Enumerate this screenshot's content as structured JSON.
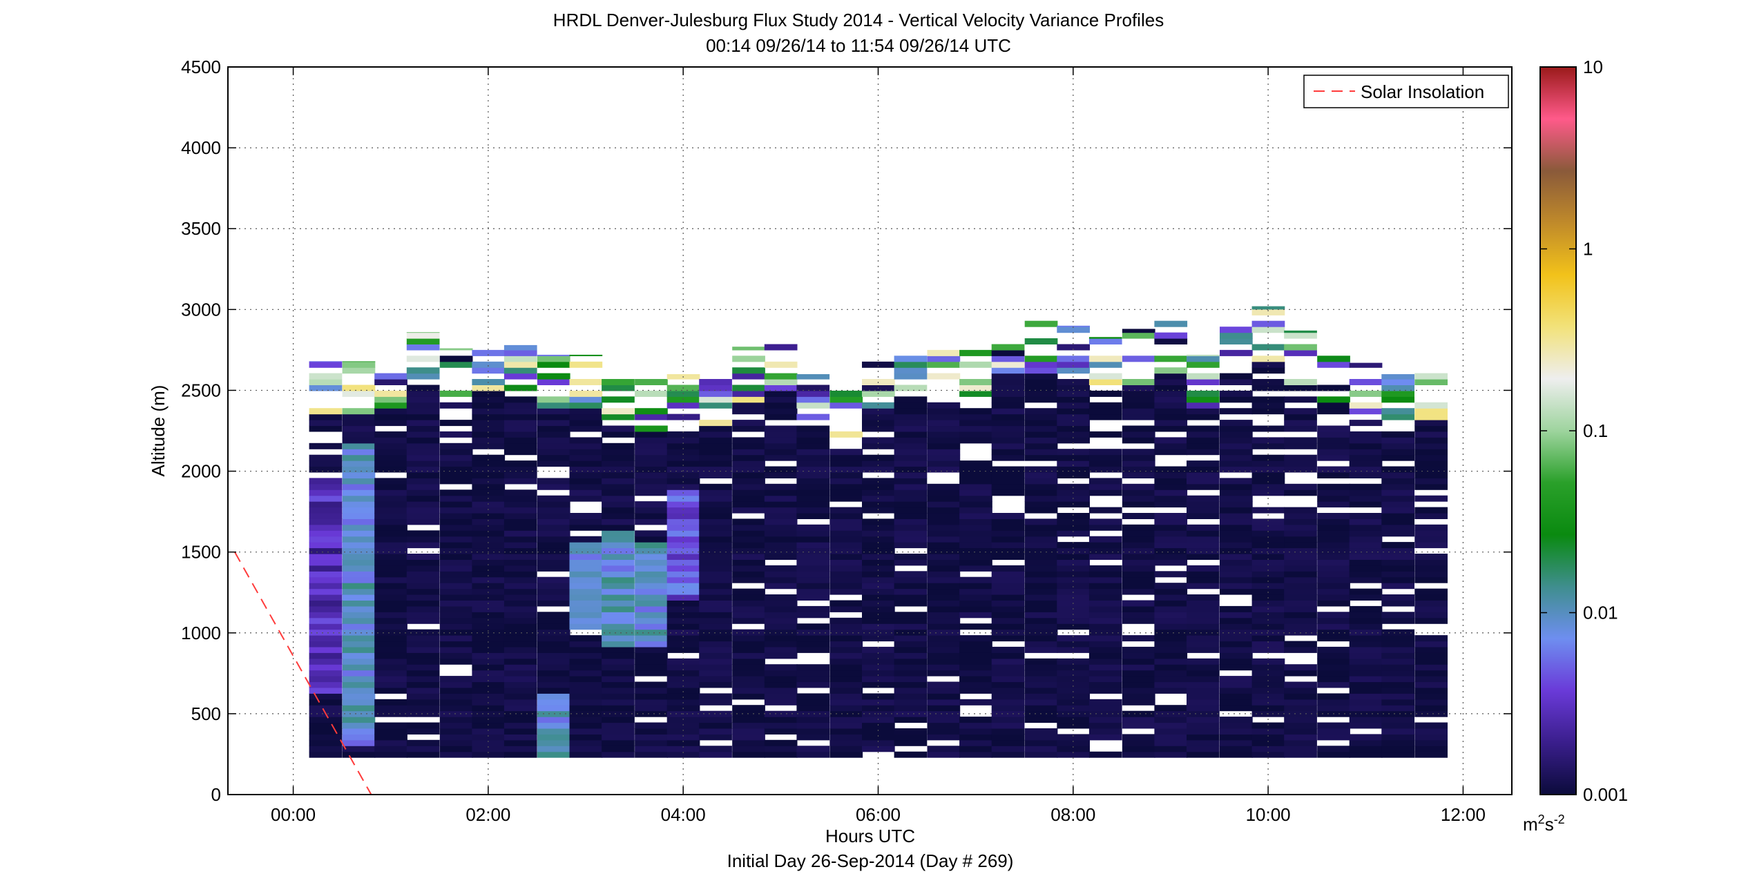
{
  "chart_data": {
    "type": "heatmap",
    "title": "HRDL Denver-Julesburg Flux Study 2014 - Vertical Velocity Variance Profiles",
    "subtitle": "00:14 09/26/14 to 11:54 09/26/14  UTC",
    "xlabel": "Hours UTC",
    "xlabel2": "Initial Day 26-Sep-2014 (Day # 269)",
    "ylabel": "Altitude (m)",
    "xlim_hours": [
      -0.67,
      12.5
    ],
    "ylim": [
      0,
      4500
    ],
    "x_ticks": [
      {
        "v": 0,
        "label": "00:00"
      },
      {
        "v": 2,
        "label": "02:00"
      },
      {
        "v": 4,
        "label": "04:00"
      },
      {
        "v": 6,
        "label": "06:00"
      },
      {
        "v": 8,
        "label": "08:00"
      },
      {
        "v": 10,
        "label": "10:00"
      },
      {
        "v": 12,
        "label": "12:00"
      }
    ],
    "y_ticks": [
      {
        "v": 0,
        "label": "0"
      },
      {
        "v": 500,
        "label": "500"
      },
      {
        "v": 1000,
        "label": "1000"
      },
      {
        "v": 1500,
        "label": "1500"
      },
      {
        "v": 2000,
        "label": "2000"
      },
      {
        "v": 2500,
        "label": "2500"
      },
      {
        "v": 3000,
        "label": "3000"
      },
      {
        "v": 3500,
        "label": "3500"
      },
      {
        "v": 4000,
        "label": "4000"
      },
      {
        "v": 4500,
        "label": "4500"
      }
    ],
    "grid": true,
    "legend": {
      "placement": "top-right",
      "entries": [
        {
          "name": "Solar Insolation",
          "color": "#ff3b3b",
          "style": "dashed"
        }
      ]
    },
    "solar_insolation_line": {
      "x": [
        -0.6,
        0.8
      ],
      "y": [
        1500,
        0
      ]
    },
    "colorbar": {
      "scale": "log",
      "range": [
        0.001,
        10
      ],
      "ticks": [
        {
          "v": 0.001,
          "label": "0.001"
        },
        {
          "v": 0.01,
          "label": "0.01"
        },
        {
          "v": 0.1,
          "label": "0.1"
        },
        {
          "v": 1,
          "label": "1"
        },
        {
          "v": 10,
          "label": "10"
        }
      ],
      "units_base": "m",
      "units_exp1": "2",
      "units_mid": "s",
      "units_exp2": "-2",
      "color_stops": [
        "#0b0b3b",
        "#3a1e8c",
        "#6a3ad8",
        "#6e8ef0",
        "#3f8e8e",
        "#0a8a10",
        "#2aa02a",
        "#9ed49e",
        "#eeeeee",
        "#f2e27a",
        "#f2c21a",
        "#c08a2a",
        "#8a5a3a",
        "#ff5a8a",
        "#9a1a1a"
      ]
    },
    "profile_times_hours": [
      0.33,
      0.67,
      1.0,
      1.33,
      1.67,
      2.0,
      2.33,
      2.67,
      3.0,
      3.33,
      3.67,
      4.0,
      4.33,
      4.67,
      5.0,
      5.33,
      5.67,
      6.0,
      6.33,
      6.67,
      7.0,
      7.33,
      7.67,
      8.0,
      8.33,
      8.67,
      9.0,
      9.33,
      9.67,
      10.0,
      10.33,
      10.67,
      11.0,
      11.33,
      11.67
    ],
    "profile_top_altitudes_m": [
      2680,
      2680,
      2720,
      2860,
      2760,
      2840,
      2780,
      2720,
      2720,
      2630,
      2590,
      2600,
      2630,
      2770,
      2840,
      2600,
      2500,
      2710,
      2780,
      2760,
      2800,
      2930,
      2950,
      2900,
      2830,
      2880,
      2930,
      2720,
      2920,
      3020,
      2870,
      2740,
      2670,
      2600,
      2660
    ],
    "profile_bottom_altitude_m": 230,
    "background_variance_m2s2": 0.001,
    "enhanced_layers": [
      {
        "time_hours": 0.33,
        "altitude_range_m": [
          600,
          1950
        ],
        "variance_m2s2": 0.003
      },
      {
        "time_hours": 0.67,
        "altitude_range_m": [
          300,
          2150
        ],
        "variance_m2s2": 0.01
      },
      {
        "time_hours": 2.67,
        "altitude_range_m": [
          230,
          600
        ],
        "variance_m2s2": 0.01
      },
      {
        "time_hours": 3.0,
        "altitude_range_m": [
          1000,
          1550
        ],
        "variance_m2s2": 0.008
      },
      {
        "time_hours": 3.33,
        "altitude_range_m": [
          900,
          1620
        ],
        "variance_m2s2": 0.01
      },
      {
        "time_hours": 3.67,
        "altitude_range_m": [
          900,
          1530
        ],
        "variance_m2s2": 0.01
      },
      {
        "time_hours": 4.0,
        "altitude_range_m": [
          1200,
          1850
        ],
        "variance_m2s2": 0.005
      },
      {
        "time_hours": 7.75,
        "altitude_range_m": [
          300,
          500
        ],
        "variance_m2s2": 0.003
      }
    ],
    "profiles": "rendered procedurally below"
  }
}
